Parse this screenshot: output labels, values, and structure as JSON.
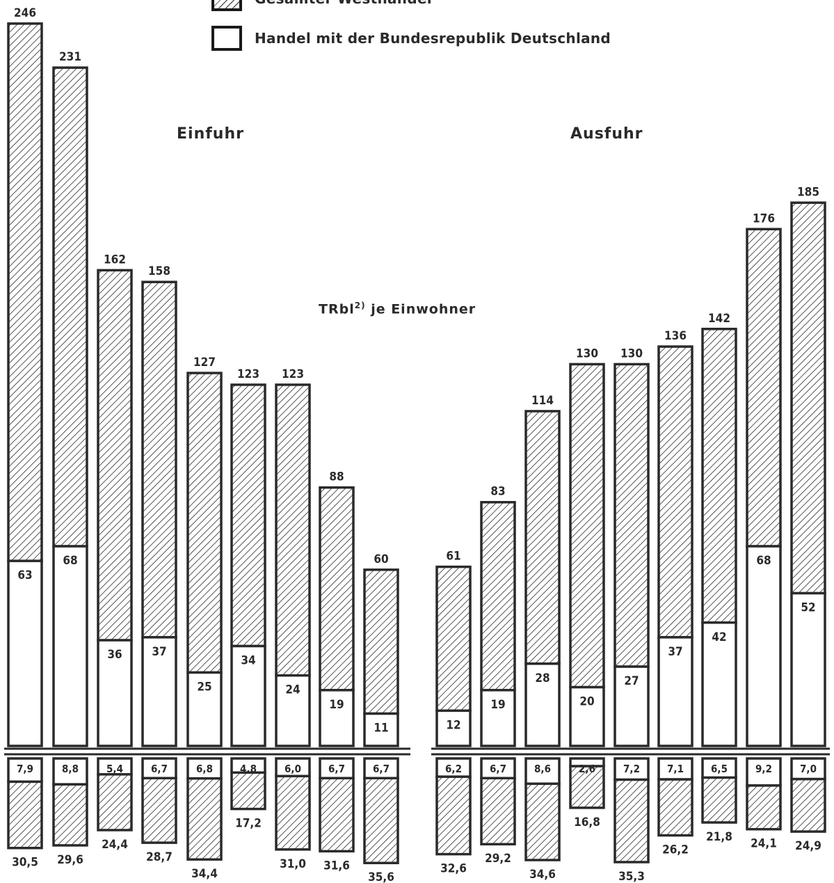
{
  "legend": {
    "total_label": "Gesamter Westhandel",
    "frg_label": "Handel mit der Bundesrepublik Deutschland"
  },
  "unit_label": "TRbl",
  "unit_footnote": "2)",
  "unit_suffix": "je Einwohner",
  "colors": {
    "ink": "#2a2a2a",
    "background": "#ffffff",
    "hatch": "#2a2a2a"
  },
  "chart_data": [
    {
      "type": "bar",
      "title": "Einfuhr",
      "series": [
        {
          "name": "Gesamter Westhandel",
          "values": [
            246,
            231,
            162,
            158,
            127,
            123,
            123,
            88,
            60
          ]
        },
        {
          "name": "Handel mit der Bundesrepublik Deutschland",
          "values": [
            63,
            68,
            36,
            37,
            25,
            34,
            24,
            19,
            11
          ]
        }
      ],
      "lower": {
        "frg_values": [
          "7,9",
          "8,8",
          "5,4",
          "6,7",
          "6,8",
          "4,8",
          "6,0",
          "6,7",
          "6,7"
        ],
        "total_values": [
          "30,5",
          "29,6",
          "24,4",
          "28,7",
          "34,4",
          "17,2",
          "31,0",
          "31,6",
          "35,6"
        ]
      }
    },
    {
      "type": "bar",
      "title": "Ausfuhr",
      "series": [
        {
          "name": "Gesamter Westhandel",
          "values": [
            61,
            83,
            114,
            130,
            130,
            136,
            142,
            176,
            185
          ]
        },
        {
          "name": "Handel mit der Bundesrepublik Deutschland",
          "values": [
            12,
            19,
            28,
            20,
            27,
            37,
            42,
            68,
            52
          ]
        }
      ],
      "lower": {
        "frg_values": [
          "6,2",
          "6,7",
          "8,6",
          "2,6",
          "7,2",
          "7,1",
          "6,5",
          "9,2",
          "7,0"
        ],
        "total_values": [
          "32,6",
          "29,2",
          "34,6",
          "16,8",
          "35,3",
          "26,2",
          "21,8",
          "24,1",
          "24,9"
        ]
      }
    }
  ]
}
